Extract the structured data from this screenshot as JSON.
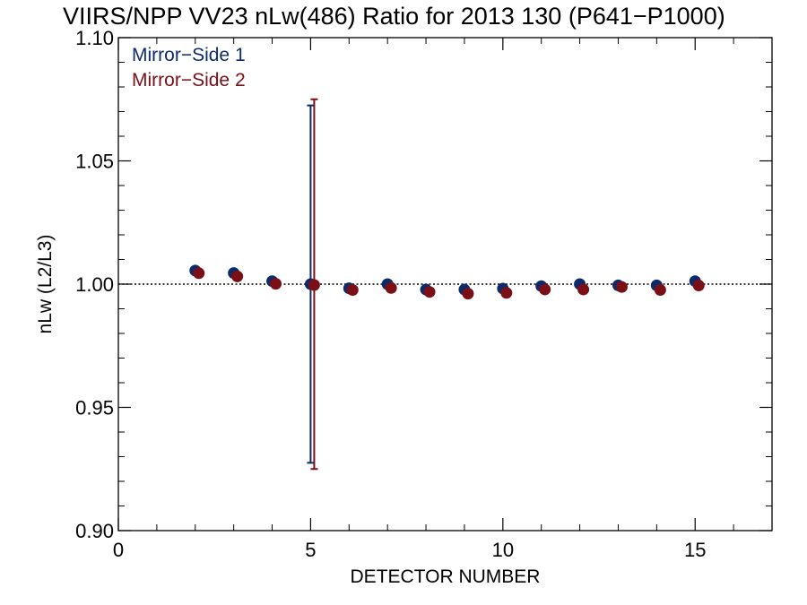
{
  "chart_data": {
    "type": "scatter",
    "title": "VIIRS/NPP VV23 nLw(486) Ratio for 2013 130 (P641−P1000)",
    "xlabel": "DETECTOR NUMBER",
    "ylabel": "nLw (L2/L3)",
    "xlim": [
      0,
      17
    ],
    "ylim": [
      0.9,
      1.1
    ],
    "x_ticks": [
      0,
      5,
      10,
      15
    ],
    "x_tick_labels": [
      "0",
      "5",
      "10",
      "15"
    ],
    "y_ticks": [
      0.9,
      0.95,
      1.0,
      1.05,
      1.1
    ],
    "y_tick_labels": [
      "0.90",
      "0.95",
      "1.00",
      "1.05",
      "1.10"
    ],
    "reference_line": 1.0,
    "legend_position": "top-left",
    "series": [
      {
        "name": "Mirror−Side 1",
        "color": "#0d2b6b",
        "x": [
          2,
          3,
          4,
          5,
          6,
          7,
          8,
          9,
          10,
          11,
          12,
          13,
          14,
          15
        ],
        "y": [
          1.0055,
          1.0045,
          1.0012,
          1.0,
          0.9983,
          1.0,
          0.9978,
          0.9978,
          0.9982,
          0.9992,
          1.0,
          0.9995,
          0.9995,
          1.0012
        ],
        "error_bar": {
          "x": 5,
          "low": 0.9275,
          "high": 1.0725
        }
      },
      {
        "name": "Mirror−Side 2",
        "color": "#7a0f16",
        "x": [
          2,
          3,
          4,
          5,
          6,
          7,
          8,
          9,
          10,
          11,
          12,
          13,
          14,
          15
        ],
        "y": [
          1.0048,
          1.0035,
          1.0005,
          1.0,
          0.998,
          0.9988,
          0.9972,
          0.9965,
          0.9968,
          0.9982,
          0.9982,
          0.9992,
          0.998,
          0.9998
        ],
        "error_bar": {
          "x": 5,
          "low": 0.925,
          "high": 1.075
        }
      }
    ]
  }
}
